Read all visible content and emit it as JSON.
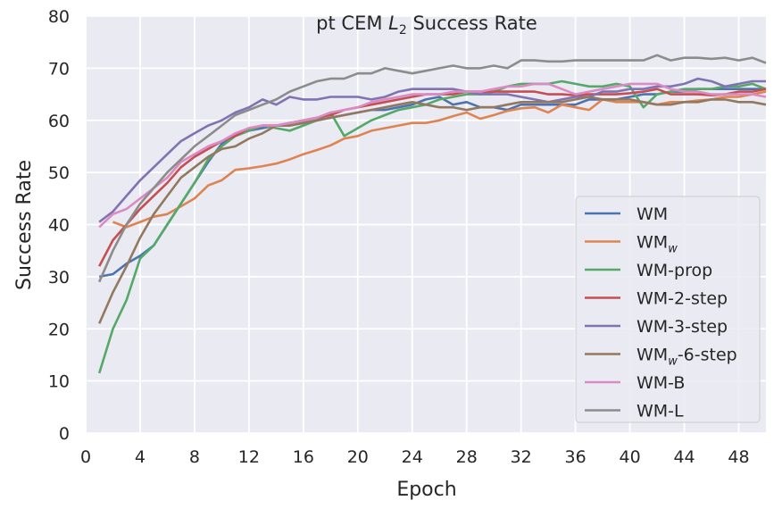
{
  "chart_data": {
    "type": "line",
    "title": {
      "prefix": "pt CEM ",
      "italic": "L",
      "sub": "2",
      "suffix": " Success Rate"
    },
    "xlabel": "Epoch",
    "ylabel": "Success Rate",
    "xlim": [
      0,
      50
    ],
    "ylim": [
      0,
      80
    ],
    "xticks": [
      0,
      4,
      8,
      12,
      16,
      20,
      24,
      28,
      32,
      36,
      40,
      44,
      48
    ],
    "yticks": [
      0,
      10,
      20,
      30,
      40,
      50,
      60,
      70,
      80
    ],
    "grid": true,
    "background": "#eaeaf2",
    "legend_position": "bottom-right",
    "x": [
      1,
      2,
      3,
      4,
      5,
      6,
      7,
      8,
      9,
      10,
      11,
      12,
      13,
      14,
      15,
      16,
      17,
      18,
      19,
      20,
      21,
      22,
      23,
      24,
      25,
      26,
      27,
      28,
      29,
      30,
      31,
      32,
      33,
      34,
      35,
      36,
      37,
      38,
      39,
      40,
      41,
      42,
      43,
      44,
      45,
      46,
      47,
      48,
      49,
      50
    ],
    "series": [
      {
        "name": "WM",
        "label": {
          "base": "WM",
          "sub": "",
          "suffix": ""
        },
        "color": "#4c72b0",
        "values": [
          30,
          30.5,
          32.5,
          34,
          36,
          40,
          44,
          48,
          52,
          55.5,
          57,
          58,
          58.5,
          59,
          59,
          59.5,
          60,
          60.5,
          61,
          61.5,
          62,
          62,
          62.5,
          63,
          64,
          64.5,
          63,
          63.5,
          62.5,
          62.5,
          62,
          63,
          63,
          63,
          63,
          63,
          64,
          64,
          64,
          64.5,
          65,
          65,
          65.5,
          65.5,
          66,
          66,
          66,
          66,
          66,
          66
        ]
      },
      {
        "name": "WMw",
        "label": {
          "base": "WM",
          "sub": "w",
          "suffix": ""
        },
        "color": "#dd8452",
        "values": [
          null,
          40.5,
          39.5,
          40.5,
          41.5,
          42,
          43.5,
          45,
          47.5,
          48.5,
          50.5,
          50.8,
          51.2,
          51.7,
          52.5,
          53.5,
          54.3,
          55.2,
          56.5,
          57,
          58,
          58.5,
          59,
          59.5,
          59.5,
          60,
          60.8,
          61.5,
          60.3,
          61,
          61.8,
          62.3,
          62.5,
          61.5,
          63,
          62.5,
          62,
          64,
          63.5,
          63.5,
          63.5,
          63,
          63.5,
          63.5,
          63.8,
          64,
          64.5,
          64.5,
          65,
          65.5
        ]
      },
      {
        "name": "WM-prop",
        "label": {
          "base": "WM-prop",
          "sub": "",
          "suffix": ""
        },
        "color": "#55a868",
        "values": [
          11.5,
          20,
          25.5,
          33.5,
          36,
          40,
          44,
          48,
          52.5,
          55,
          57,
          58,
          59,
          58.5,
          58,
          59,
          60,
          61.5,
          57,
          58.5,
          60,
          61,
          62,
          62.5,
          63,
          64,
          64.5,
          65,
          65,
          65.5,
          66.5,
          67,
          67,
          67,
          67.5,
          67,
          66.5,
          66.5,
          67,
          66.5,
          62.5,
          65,
          65.5,
          66,
          66,
          66,
          66.5,
          66.5,
          67,
          66
        ]
      },
      {
        "name": "WM-2-step",
        "label": {
          "base": "WM-2-step",
          "sub": "",
          "suffix": ""
        },
        "color": "#c44e52",
        "values": [
          32,
          37,
          40,
          43,
          45.5,
          48,
          51,
          53,
          54.5,
          56,
          57,
          58.5,
          59,
          59,
          59.5,
          60,
          60.5,
          61,
          62,
          62.5,
          63,
          63.5,
          64,
          64.5,
          65,
          65,
          65,
          65.5,
          65.5,
          65.5,
          65.5,
          65.5,
          65.5,
          65,
          65,
          64.8,
          65,
          65,
          65,
          65.2,
          65.5,
          66,
          65,
          65,
          65,
          64.8,
          65,
          65.5,
          65.5,
          66
        ]
      },
      {
        "name": "WM-3-step",
        "label": {
          "base": "WM-3-step",
          "sub": "",
          "suffix": ""
        },
        "color": "#8172b3",
        "values": [
          40.5,
          42.5,
          45.5,
          48.5,
          51,
          53.5,
          56,
          57.5,
          59,
          60,
          61.5,
          62.5,
          64,
          63,
          64.5,
          64,
          64,
          64.5,
          64.5,
          64.5,
          64,
          64.5,
          65.5,
          66,
          66,
          66,
          66,
          65.5,
          65,
          65,
          65,
          64.5,
          64,
          63.5,
          64,
          64.5,
          64.5,
          65.5,
          65.5,
          66,
          66,
          66.5,
          66.5,
          67,
          68,
          67.5,
          66.5,
          67,
          67.5,
          67.5
        ]
      },
      {
        "name": "WMw-6-step",
        "label": {
          "base": "WM",
          "sub": "w",
          "suffix": "-6-step"
        },
        "color": "#937860",
        "values": [
          21,
          27,
          32,
          37.5,
          42,
          45.5,
          49,
          51,
          53,
          54.5,
          55,
          56.5,
          57.5,
          59,
          59,
          59.5,
          60,
          60.5,
          61,
          61.5,
          62,
          62.5,
          63,
          63.5,
          63,
          62.5,
          62.5,
          62,
          62.5,
          62.5,
          63,
          63.5,
          63.5,
          63.5,
          63.5,
          64,
          64.5,
          64,
          64,
          64,
          63.5,
          63,
          63,
          63.5,
          63.5,
          64,
          64,
          63.5,
          63.5,
          63
        ]
      },
      {
        "name": "WM-B",
        "label": {
          "base": "WM-B",
          "sub": "",
          "suffix": ""
        },
        "color": "#da8bc3",
        "values": [
          39.5,
          42,
          43,
          45,
          47,
          49,
          52,
          53.5,
          55,
          56,
          57.5,
          58.5,
          59,
          59,
          59.5,
          60,
          60.5,
          61.5,
          62,
          62.5,
          63.5,
          64,
          64.5,
          65,
          65,
          65,
          65.5,
          65.5,
          65.5,
          66,
          66.5,
          66.5,
          67,
          67,
          66,
          65,
          65.5,
          66,
          66.5,
          67,
          67,
          67,
          66,
          65.5,
          65.5,
          65,
          65,
          65,
          65,
          64.5
        ]
      },
      {
        "name": "WM-L",
        "label": {
          "base": "WM-L",
          "sub": "",
          "suffix": ""
        },
        "color": "#8c8c8c",
        "values": [
          29,
          35,
          40,
          44,
          47,
          50,
          52.5,
          55,
          57,
          59,
          61,
          62,
          63,
          64,
          65.5,
          66.5,
          67.5,
          68,
          68,
          69,
          69,
          70,
          69.5,
          69,
          69.5,
          70,
          70.5,
          70,
          70,
          70.5,
          70,
          71.5,
          71.5,
          71.3,
          71.3,
          71.5,
          71.5,
          71.5,
          71.5,
          71.5,
          71.5,
          72.5,
          71.5,
          72,
          72,
          71.8,
          72,
          71.5,
          72,
          71
        ]
      }
    ]
  }
}
